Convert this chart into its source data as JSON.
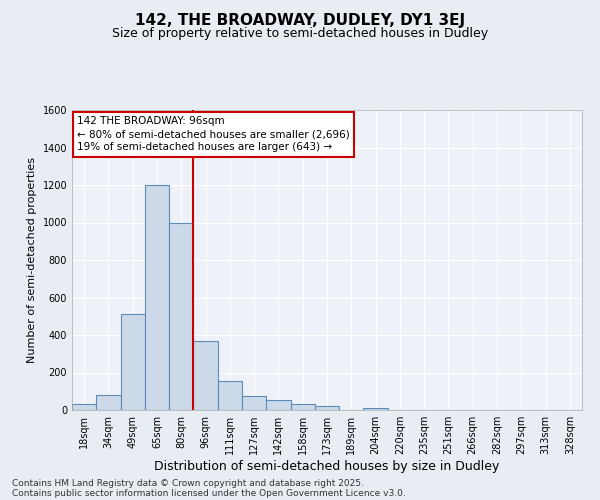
{
  "title": "142, THE BROADWAY, DUDLEY, DY1 3EJ",
  "subtitle": "Size of property relative to semi-detached houses in Dudley",
  "xlabel": "Distribution of semi-detached houses by size in Dudley",
  "ylabel": "Number of semi-detached properties",
  "footer_line1": "Contains HM Land Registry data © Crown copyright and database right 2025.",
  "footer_line2": "Contains public sector information licensed under the Open Government Licence v3.0.",
  "categories": [
    "18sqm",
    "34sqm",
    "49sqm",
    "65sqm",
    "80sqm",
    "96sqm",
    "111sqm",
    "127sqm",
    "142sqm",
    "158sqm",
    "173sqm",
    "189sqm",
    "204sqm",
    "220sqm",
    "235sqm",
    "251sqm",
    "266sqm",
    "282sqm",
    "297sqm",
    "313sqm",
    "328sqm"
  ],
  "bar_values": [
    30,
    80,
    510,
    1200,
    1000,
    370,
    155,
    75,
    55,
    30,
    20,
    0,
    10,
    0,
    0,
    0,
    0,
    0,
    0,
    0,
    0
  ],
  "bar_color": "#ccd9e8",
  "bar_edge_color": "#5b8db8",
  "red_line_color": "#cc0000",
  "red_line_index": 5,
  "annotation_line1": "142 THE BROADWAY: 96sqm",
  "annotation_line2": "← 80% of semi-detached houses are smaller (2,696)",
  "annotation_line3": "19% of semi-detached houses are larger (643) →",
  "ylim": [
    0,
    1600
  ],
  "yticks": [
    0,
    200,
    400,
    600,
    800,
    1000,
    1200,
    1400,
    1600
  ],
  "bg_color": "#e8edf4",
  "plot_bg_color": "#eef2f8",
  "grid_color": "#ffffff",
  "title_fontsize": 11,
  "subtitle_fontsize": 9,
  "axis_label_fontsize": 8,
  "tick_fontsize": 7,
  "annotation_fontsize": 7.5,
  "footer_fontsize": 6.5
}
